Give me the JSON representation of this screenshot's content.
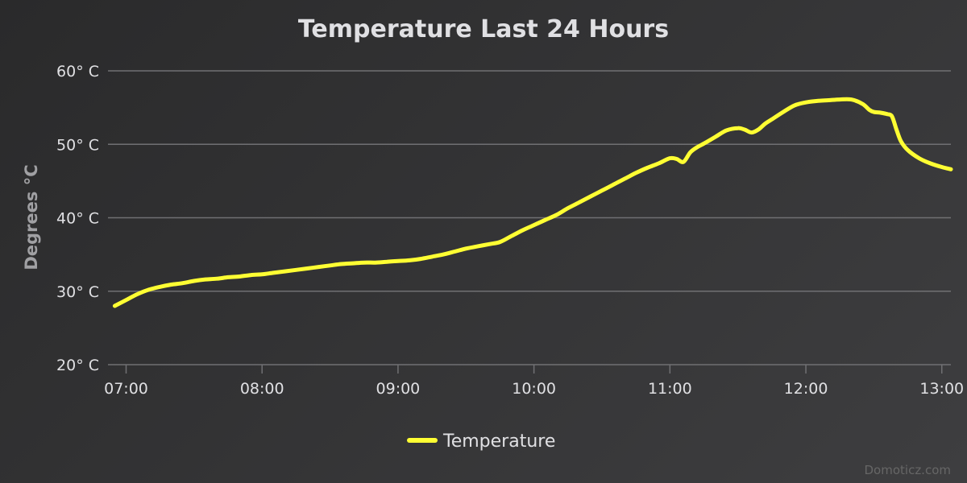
{
  "colors": {
    "series": "#ffff33",
    "grid": "#707073",
    "text": "#e0e0e3",
    "axis_title": "#a0a0a3"
  },
  "credits": "Domoticz.com",
  "chart_data": {
    "type": "line",
    "title": "Temperature Last 24 Hours",
    "ylabel": "Degrees °C",
    "xlabel": "",
    "ylim": [
      20,
      60
    ],
    "xlim": [
      "06:52",
      "13:04"
    ],
    "grid": true,
    "legend": "bottom-center",
    "y_ticks": [
      "20° C",
      "30° C",
      "40° C",
      "50° C",
      "60° C"
    ],
    "y_tick_values": [
      20,
      30,
      40,
      50,
      60
    ],
    "x_ticks": [
      "07:00",
      "08:00",
      "09:00",
      "10:00",
      "11:00",
      "12:00",
      "13:00"
    ],
    "series": [
      {
        "name": "Temperature",
        "color": "#ffff33",
        "x": [
          "06:55",
          "07:00",
          "07:05",
          "07:10",
          "07:15",
          "07:20",
          "07:25",
          "07:30",
          "07:35",
          "07:40",
          "07:45",
          "07:50",
          "07:55",
          "08:00",
          "08:05",
          "08:10",
          "08:15",
          "08:20",
          "08:25",
          "08:30",
          "08:35",
          "08:40",
          "08:45",
          "08:50",
          "08:55",
          "09:00",
          "09:05",
          "09:10",
          "09:15",
          "09:20",
          "09:25",
          "09:30",
          "09:35",
          "09:40",
          "09:45",
          "09:50",
          "09:55",
          "10:00",
          "10:05",
          "10:10",
          "10:15",
          "10:20",
          "10:25",
          "10:30",
          "10:35",
          "10:40",
          "10:45",
          "10:50",
          "10:55",
          "11:00",
          "11:03",
          "11:06",
          "11:09",
          "11:12",
          "11:15",
          "11:20",
          "11:25",
          "11:30",
          "11:33",
          "11:36",
          "11:39",
          "11:42",
          "11:45",
          "11:50",
          "11:55",
          "12:00",
          "12:05",
          "12:10",
          "12:15",
          "12:20",
          "12:25",
          "12:28",
          "12:30",
          "12:33",
          "12:36",
          "12:38",
          "12:40",
          "12:42",
          "12:45",
          "12:50",
          "12:55",
          "13:00",
          "13:04"
        ],
        "values": [
          28.0,
          28.8,
          29.6,
          30.2,
          30.6,
          30.9,
          31.1,
          31.4,
          31.6,
          31.7,
          31.9,
          32.0,
          32.2,
          32.3,
          32.5,
          32.7,
          32.9,
          33.1,
          33.3,
          33.5,
          33.7,
          33.8,
          33.9,
          33.9,
          34.0,
          34.1,
          34.2,
          34.4,
          34.7,
          35.0,
          35.4,
          35.8,
          36.1,
          36.4,
          36.7,
          37.5,
          38.3,
          39.0,
          39.7,
          40.4,
          41.3,
          42.1,
          42.9,
          43.7,
          44.5,
          45.3,
          46.1,
          46.8,
          47.4,
          48.1,
          48.0,
          47.6,
          48.9,
          49.6,
          50.1,
          51.0,
          51.9,
          52.2,
          52.0,
          51.6,
          52.0,
          52.8,
          53.4,
          54.4,
          55.3,
          55.7,
          55.9,
          56.0,
          56.1,
          56.1,
          55.5,
          54.7,
          54.4,
          54.3,
          54.1,
          53.8,
          52.0,
          50.4,
          49.2,
          48.1,
          47.4,
          46.9,
          46.6
        ]
      }
    ]
  }
}
